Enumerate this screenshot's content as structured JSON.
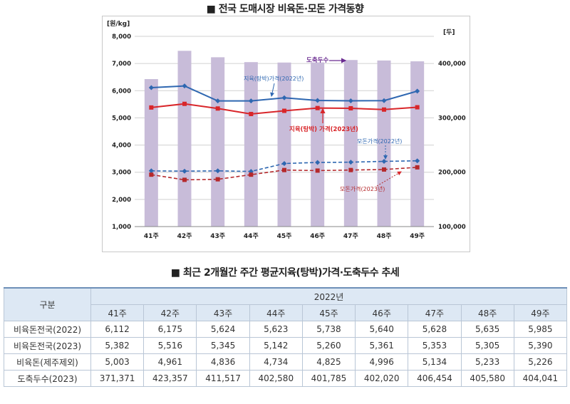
{
  "chart_title": "■ 전국 도매시장 비육돈·모돈 가격동향",
  "table_title": "■ 최근 2개월간 주간 평균지육(탕박)가격·도축두수 추세",
  "chart_data": {
    "type": "bar+line",
    "categories": [
      "41주",
      "42주",
      "43주",
      "44주",
      "45주",
      "46주",
      "47주",
      "48주",
      "49주"
    ],
    "y_left": {
      "label": "[원/kg]",
      "range": [
        1000,
        8000
      ],
      "ticks": [
        "1,000",
        "2,000",
        "3,000",
        "4,000",
        "5,000",
        "6,000",
        "7,000",
        "8,000"
      ]
    },
    "y_right": {
      "label": "[두]",
      "range": [
        100000,
        450000
      ],
      "ticks": [
        "100,000",
        "200,000",
        "300,000",
        "400,000"
      ]
    },
    "bars": {
      "name": "도축두수",
      "color": "#c8bcd9",
      "values": [
        371371,
        423357,
        411517,
        402580,
        401785,
        402020,
        406454,
        405580,
        404041
      ]
    },
    "series": [
      {
        "name": "지육(탕박)가격(2022년)",
        "color": "#2e67b1",
        "dash": false,
        "marker": "diamond",
        "values": [
          6112,
          6175,
          5624,
          5623,
          5738,
          5640,
          5628,
          5635,
          5985
        ]
      },
      {
        "name": "지육(탕박) 가격(2023년)",
        "color": "#d9262a",
        "dash": false,
        "marker": "square",
        "values": [
          5382,
          5516,
          5345,
          5142,
          5260,
          5361,
          5353,
          5305,
          5390
        ]
      },
      {
        "name": "모돈가격(2022년)",
        "color": "#2e67b1",
        "dash": true,
        "marker": "diamond",
        "values": [
          3050,
          3040,
          3050,
          3030,
          3320,
          3360,
          3370,
          3400,
          3420
        ]
      },
      {
        "name": "모돈가격(2023년)",
        "color": "#b5292c",
        "dash": true,
        "marker": "square",
        "values": [
          2910,
          2720,
          2740,
          2910,
          3080,
          3060,
          3080,
          3100,
          3180
        ]
      }
    ],
    "annotations": [
      "도축두수",
      "지육(탕박)가격(2022년)",
      "지육(탕박) 가격(2023년)",
      "모돈가격(2022년)",
      "모돈가격(2023년)"
    ],
    "grid": true
  },
  "table": {
    "header_group": "구분",
    "year": "2022년",
    "weeks": [
      "41주",
      "42주",
      "43주",
      "44주",
      "45주",
      "46주",
      "47주",
      "48주",
      "49주"
    ],
    "rows": [
      {
        "label": "비육돈전국(2022)",
        "values": [
          "6,112",
          "6,175",
          "5,624",
          "5,623",
          "5,738",
          "5,640",
          "5,628",
          "5,635",
          "5,985"
        ]
      },
      {
        "label": "비육돈전국(2023)",
        "values": [
          "5,382",
          "5,516",
          "5,345",
          "5,142",
          "5,260",
          "5,361",
          "5,353",
          "5,305",
          "5,390"
        ]
      },
      {
        "label": "비육돈(제주제외)",
        "values": [
          "5,003",
          "4,961",
          "4,836",
          "4,734",
          "4,825",
          "4,996",
          "5,134",
          "5,233",
          "5,226"
        ]
      },
      {
        "label": "도축두수(2023)",
        "values": [
          "371,371",
          "423,357",
          "411,517",
          "402,580",
          "401,785",
          "402,020",
          "406,454",
          "405,580",
          "404,041"
        ]
      }
    ]
  }
}
